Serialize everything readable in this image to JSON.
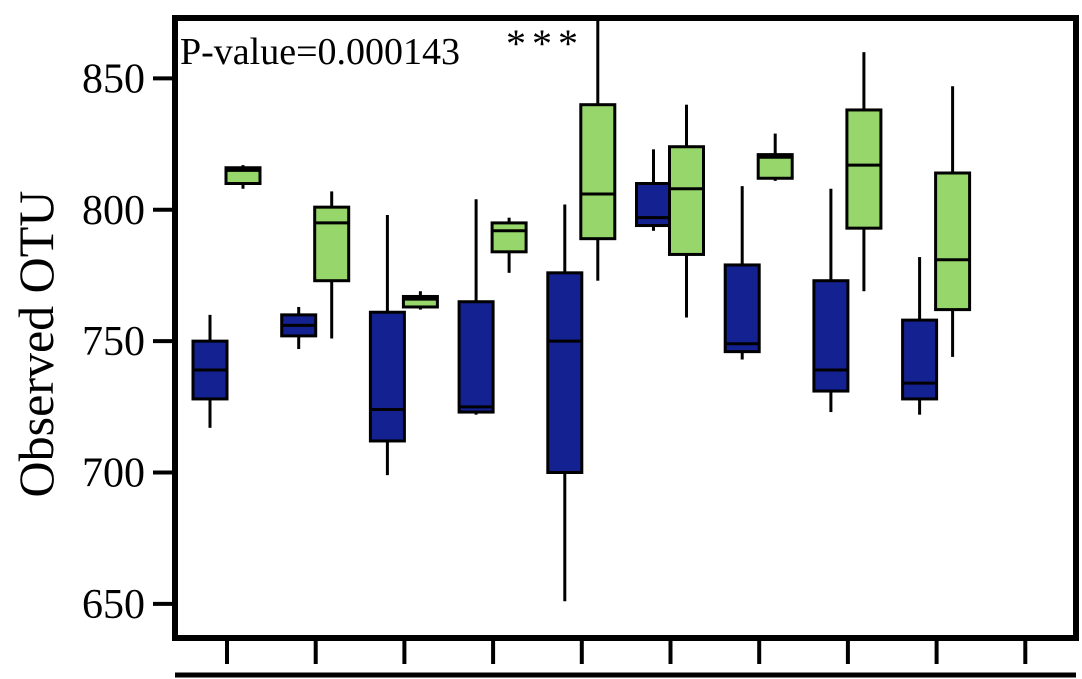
{
  "chart_data": {
    "type": "boxplot",
    "title": "",
    "ylabel": "Observed OTU",
    "xlabel": "",
    "ylim": [
      637,
      873
    ],
    "yticks": [
      {
        "value": 650,
        "label": "650"
      },
      {
        "value": 700,
        "label": "700"
      },
      {
        "value": 750,
        "label": "750"
      },
      {
        "value": 800,
        "label": "800"
      },
      {
        "value": 850,
        "label": "850"
      }
    ],
    "annotation": {
      "text": "P-value=0.000143",
      "stars": "***"
    },
    "series": [
      {
        "name": "group-blue",
        "color": "#142190"
      },
      {
        "name": "group-green",
        "color": "#96d66a"
      }
    ],
    "boxes": [
      {
        "series": 0,
        "slot": 0,
        "whisker_low": 717,
        "q1": 728,
        "median": 739,
        "q3": 750,
        "whisker_high": 760
      },
      {
        "series": 1,
        "slot": 0,
        "whisker_low": 808,
        "q1": 810,
        "median": 815,
        "q3": 816,
        "whisker_high": 817
      },
      {
        "series": 0,
        "slot": 1,
        "whisker_low": 747,
        "q1": 752,
        "median": 756,
        "q3": 760,
        "whisker_high": 763
      },
      {
        "series": 1,
        "slot": 1,
        "whisker_low": 751,
        "q1": 773,
        "median": 795,
        "q3": 801,
        "whisker_high": 807
      },
      {
        "series": 0,
        "slot": 2,
        "whisker_low": 699,
        "q1": 712,
        "median": 724,
        "q3": 761,
        "whisker_high": 798
      },
      {
        "series": 1,
        "slot": 2,
        "whisker_low": 762,
        "q1": 763,
        "median": 766,
        "q3": 767,
        "whisker_high": 769
      },
      {
        "series": 0,
        "slot": 3,
        "whisker_low": 722,
        "q1": 723,
        "median": 725,
        "q3": 765,
        "whisker_high": 804
      },
      {
        "series": 1,
        "slot": 3,
        "whisker_low": 776,
        "q1": 784,
        "median": 792,
        "q3": 795,
        "whisker_high": 797
      },
      {
        "series": 0,
        "slot": 4,
        "whisker_low": 651,
        "q1": 700,
        "median": 750,
        "q3": 776,
        "whisker_high": 802
      },
      {
        "series": 1,
        "slot": 4,
        "whisker_low": 773,
        "q1": 789,
        "median": 806,
        "q3": 840,
        "whisker_high": 873
      },
      {
        "series": 0,
        "slot": 5,
        "whisker_low": 792,
        "q1": 794,
        "median": 797,
        "q3": 810,
        "whisker_high": 823
      },
      {
        "series": 1,
        "slot": 5,
        "whisker_low": 759,
        "q1": 783,
        "median": 808,
        "q3": 824,
        "whisker_high": 840
      },
      {
        "series": 0,
        "slot": 6,
        "whisker_low": 743,
        "q1": 746,
        "median": 749,
        "q3": 779,
        "whisker_high": 809
      },
      {
        "series": 1,
        "slot": 6,
        "whisker_low": 811,
        "q1": 812,
        "median": 820,
        "q3": 821,
        "whisker_high": 829
      },
      {
        "series": 0,
        "slot": 7,
        "whisker_low": 723,
        "q1": 731,
        "median": 739,
        "q3": 773,
        "whisker_high": 808
      },
      {
        "series": 1,
        "slot": 7,
        "whisker_low": 769,
        "q1": 793,
        "median": 817,
        "q3": 838,
        "whisker_high": 860
      },
      {
        "series": 0,
        "slot": 8,
        "whisker_low": 722,
        "q1": 728,
        "median": 734,
        "q3": 758,
        "whisker_high": 782
      },
      {
        "series": 1,
        "slot": 8,
        "whisker_low": 744,
        "q1": 762,
        "median": 781,
        "q3": 814,
        "whisker_high": 847
      }
    ],
    "slots": 10,
    "grid": false,
    "legend": "none"
  }
}
